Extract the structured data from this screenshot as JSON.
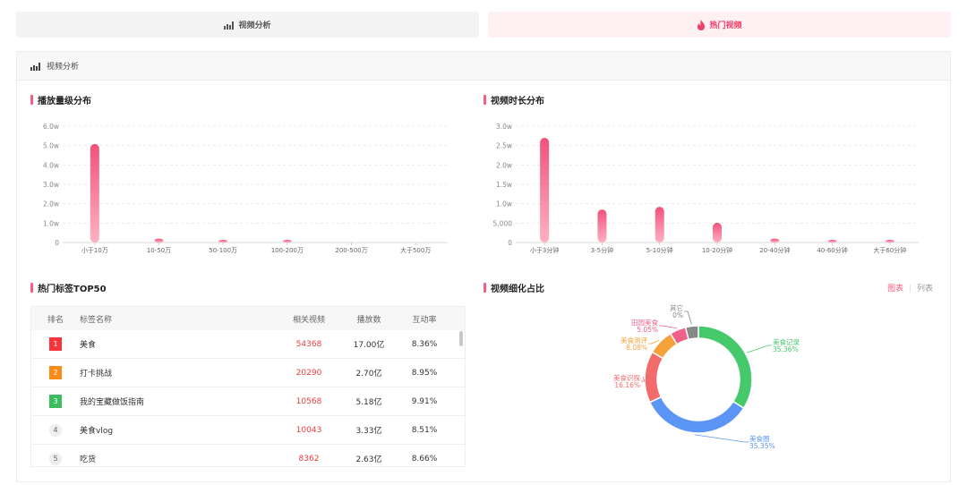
{
  "tabs": {
    "left_label": "视频分析",
    "right_label": "热门视频"
  },
  "panel": {
    "title": "视频分析"
  },
  "charts": {
    "play_title": "播放量级分布",
    "duration_title": "视频时长分布",
    "pie_title": "视频细化占比"
  },
  "chart_data": [
    {
      "type": "bar",
      "title": "播放量级分布",
      "categories": [
        "小于10万",
        "10-50万",
        "50-100万",
        "100-200万",
        "200-500万",
        "大于500万"
      ],
      "values": [
        5.08,
        0.2,
        0.03,
        0.02,
        0,
        0
      ],
      "value_unit": "w",
      "ylim": [
        0,
        6
      ],
      "yticks": [
        "0",
        "1.0w",
        "2.0w",
        "3.0w",
        "4.0w",
        "5.0w",
        "6.0w"
      ],
      "grid": true
    },
    {
      "type": "bar",
      "title": "视频时长分布",
      "categories": [
        "小于3分钟",
        "3-5分钟",
        "5-10分钟",
        "10-20分钟",
        "20-40分钟",
        "40-60分钟",
        "大于60分钟"
      ],
      "values": [
        27000,
        8500,
        9200,
        5100,
        1000,
        400,
        500
      ],
      "ylim": [
        0,
        30000
      ],
      "yticks": [
        "0",
        "5,000",
        "1.0w",
        "1.5w",
        "2.0w",
        "2.5w",
        "3.0w"
      ],
      "grid": true
    },
    {
      "type": "pie",
      "title": "视频细化占比",
      "donut": true,
      "slices": [
        {
          "name": "美食记录",
          "percent": "35.36%",
          "value": 35.36,
          "color": "#45c96b"
        },
        {
          "name": "美食圈",
          "percent": "35.35%",
          "value": 35.35,
          "color": "#5b96f7"
        },
        {
          "name": "美食识探",
          "percent": "16.16%",
          "value": 16.16,
          "color": "#f36b6b"
        },
        {
          "name": "美食测评",
          "percent": "8.08%",
          "value": 8.08,
          "color": "#f6a23a"
        },
        {
          "name": "田园美食",
          "percent": "5.05%",
          "value": 5.05,
          "color": "#f0608a"
        },
        {
          "name": "其它",
          "percent": "0%",
          "value": 0.0001,
          "color": "#888888"
        }
      ]
    }
  ],
  "toggle": {
    "chart": "图表",
    "sep": "|",
    "list": "列表"
  },
  "tags": {
    "title": "热门标签TOP50",
    "headers": {
      "rank": "排名",
      "name": "标签名称",
      "videos": "相关视频",
      "plays": "播放数",
      "rate": "互动率"
    },
    "rows": [
      {
        "rank": "1",
        "name": "美食",
        "videos": "54368",
        "plays": "17.00亿",
        "rate": "8.36%"
      },
      {
        "rank": "2",
        "name": "打卡挑战",
        "videos": "20290",
        "plays": "2.70亿",
        "rate": "8.95%"
      },
      {
        "rank": "3",
        "name": "我的宝藏做饭指南",
        "videos": "10568",
        "plays": "5.18亿",
        "rate": "9.91%"
      },
      {
        "rank": "4",
        "name": "美食vlog",
        "videos": "10043",
        "plays": "3.33亿",
        "rate": "8.51%"
      },
      {
        "rank": "5",
        "name": "吃货",
        "videos": "8362",
        "plays": "2.63亿",
        "rate": "8.66%"
      }
    ]
  },
  "colors": {
    "accent": "#f55d83",
    "bar_top": "#f0527b",
    "bar_bottom": "#ffb1c3"
  }
}
